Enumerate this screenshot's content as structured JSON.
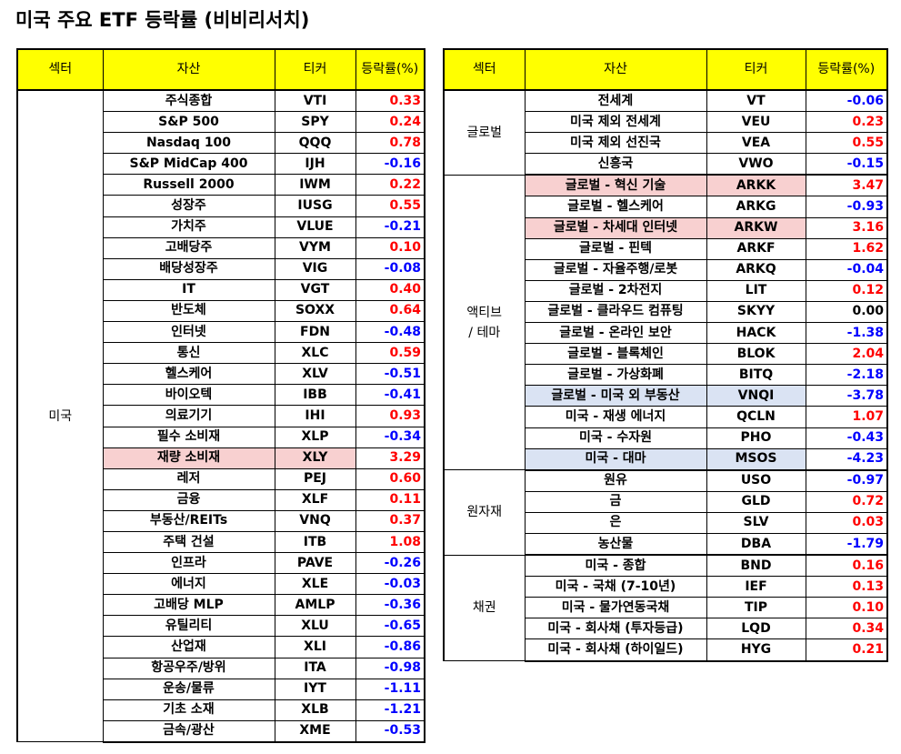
{
  "title": "미국 주요 ETF 등락률 (비비리서치)",
  "headers": {
    "sector": "섹터",
    "asset": "자산",
    "ticker": "티커",
    "change": "등락률(%)"
  },
  "colors": {
    "header_bg": "#ffff00",
    "positive": "#ff0000",
    "negative": "#0000ff",
    "highlight_red": "#f8d0d0",
    "highlight_blue": "#dae3f3"
  },
  "left_table": {
    "groups": [
      {
        "sector": "미국",
        "rows": [
          {
            "asset": "주식종합",
            "ticker": "VTI",
            "change": "0.33"
          },
          {
            "asset": "S&P 500",
            "ticker": "SPY",
            "change": "0.24"
          },
          {
            "asset": "Nasdaq 100",
            "ticker": "QQQ",
            "change": "0.78"
          },
          {
            "asset": "S&P MidCap 400",
            "ticker": "IJH",
            "change": "-0.16"
          },
          {
            "asset": "Russell 2000",
            "ticker": "IWM",
            "change": "0.22"
          },
          {
            "asset": "성장주",
            "ticker": "IUSG",
            "change": "0.55"
          },
          {
            "asset": "가치주",
            "ticker": "VLUE",
            "change": "-0.21"
          },
          {
            "asset": "고배당주",
            "ticker": "VYM",
            "change": "0.10"
          },
          {
            "asset": "배당성장주",
            "ticker": "VIG",
            "change": "-0.08"
          },
          {
            "asset": "IT",
            "ticker": "VGT",
            "change": "0.40"
          },
          {
            "asset": "반도체",
            "ticker": "SOXX",
            "change": "0.64"
          },
          {
            "asset": "인터넷",
            "ticker": "FDN",
            "change": "-0.48"
          },
          {
            "asset": "통신",
            "ticker": "XLC",
            "change": "0.59"
          },
          {
            "asset": "헬스케어",
            "ticker": "XLV",
            "change": "-0.51"
          },
          {
            "asset": "바이오텍",
            "ticker": "IBB",
            "change": "-0.41"
          },
          {
            "asset": "의료기기",
            "ticker": "IHI",
            "change": "0.93"
          },
          {
            "asset": "필수 소비재",
            "ticker": "XLP",
            "change": "-0.34"
          },
          {
            "asset": "재량 소비재",
            "ticker": "XLY",
            "change": "3.29",
            "highlight": "red"
          },
          {
            "asset": "레저",
            "ticker": "PEJ",
            "change": "0.60"
          },
          {
            "asset": "금융",
            "ticker": "XLF",
            "change": "0.11"
          },
          {
            "asset": "부동산/REITs",
            "ticker": "VNQ",
            "change": "0.37"
          },
          {
            "asset": "주택 건설",
            "ticker": "ITB",
            "change": "1.08"
          },
          {
            "asset": "인프라",
            "ticker": "PAVE",
            "change": "-0.26"
          },
          {
            "asset": "에너지",
            "ticker": "XLE",
            "change": "-0.03"
          },
          {
            "asset": "고배당 MLP",
            "ticker": "AMLP",
            "change": "-0.36"
          },
          {
            "asset": "유틸리티",
            "ticker": "XLU",
            "change": "-0.65"
          },
          {
            "asset": "산업재",
            "ticker": "XLI",
            "change": "-0.86"
          },
          {
            "asset": "항공우주/방위",
            "ticker": "ITA",
            "change": "-0.98"
          },
          {
            "asset": "운송/물류",
            "ticker": "IYT",
            "change": "-1.11"
          },
          {
            "asset": "기초 소재",
            "ticker": "XLB",
            "change": "-1.21"
          },
          {
            "asset": "금속/광산",
            "ticker": "XME",
            "change": "-0.53"
          }
        ]
      }
    ]
  },
  "right_table": {
    "groups": [
      {
        "sector": "글로벌",
        "rows": [
          {
            "asset": "전세계",
            "ticker": "VT",
            "change": "-0.06"
          },
          {
            "asset": "미국 제외 전세계",
            "ticker": "VEU",
            "change": "0.23"
          },
          {
            "asset": "미국 제외 선진국",
            "ticker": "VEA",
            "change": "0.55"
          },
          {
            "asset": "신흥국",
            "ticker": "VWO",
            "change": "-0.15"
          }
        ]
      },
      {
        "sector": "액티브\n/ 테마",
        "rows": [
          {
            "asset": "글로벌 - 혁신 기술",
            "ticker": "ARKK",
            "change": "3.47",
            "highlight": "red"
          },
          {
            "asset": "글로벌 - 헬스케어",
            "ticker": "ARKG",
            "change": "-0.93"
          },
          {
            "asset": "글로벌 - 차세대 인터넷",
            "ticker": "ARKW",
            "change": "3.16",
            "highlight": "red"
          },
          {
            "asset": "글로벌 - 핀텍",
            "ticker": "ARKF",
            "change": "1.62"
          },
          {
            "asset": "글로벌 - 자율주행/로봇",
            "ticker": "ARKQ",
            "change": "-0.04"
          },
          {
            "asset": "글로벌 - 2차전지",
            "ticker": "LIT",
            "change": "0.12"
          },
          {
            "asset": "글로벌 - 클라우드 컴퓨팅",
            "ticker": "SKYY",
            "change": "0.00"
          },
          {
            "asset": "글로벌 - 온라인 보안",
            "ticker": "HACK",
            "change": "-1.38"
          },
          {
            "asset": "글로벌 - 블록체인",
            "ticker": "BLOK",
            "change": "2.04"
          },
          {
            "asset": "글로벌 - 가상화폐",
            "ticker": "BITQ",
            "change": "-2.18"
          },
          {
            "asset": "글로벌 - 미국 외 부동산",
            "ticker": "VNQI",
            "change": "-3.78",
            "highlight": "blue"
          },
          {
            "asset": "미국 - 재생 에너지",
            "ticker": "QCLN",
            "change": "1.07"
          },
          {
            "asset": "미국 - 수자원",
            "ticker": "PHO",
            "change": "-0.43"
          },
          {
            "asset": "미국 - 대마",
            "ticker": "MSOS",
            "change": "-4.23",
            "highlight": "blue"
          }
        ]
      },
      {
        "sector": "원자재",
        "rows": [
          {
            "asset": "원유",
            "ticker": "USO",
            "change": "-0.97"
          },
          {
            "asset": "금",
            "ticker": "GLD",
            "change": "0.72"
          },
          {
            "asset": "은",
            "ticker": "SLV",
            "change": "0.03"
          },
          {
            "asset": "농산물",
            "ticker": "DBA",
            "change": "-1.79"
          }
        ]
      },
      {
        "sector": "채권",
        "rows": [
          {
            "asset": "미국 - 종합",
            "ticker": "BND",
            "change": "0.16"
          },
          {
            "asset": "미국 - 국채 (7-10년)",
            "ticker": "IEF",
            "change": "0.13"
          },
          {
            "asset": "미국 - 물가연동국채",
            "ticker": "TIP",
            "change": "0.10"
          },
          {
            "asset": "미국 - 회사채 (투자등급)",
            "ticker": "LQD",
            "change": "0.34"
          },
          {
            "asset": "미국 - 회사채 (하이일드)",
            "ticker": "HYG",
            "change": "0.21"
          }
        ]
      }
    ]
  }
}
